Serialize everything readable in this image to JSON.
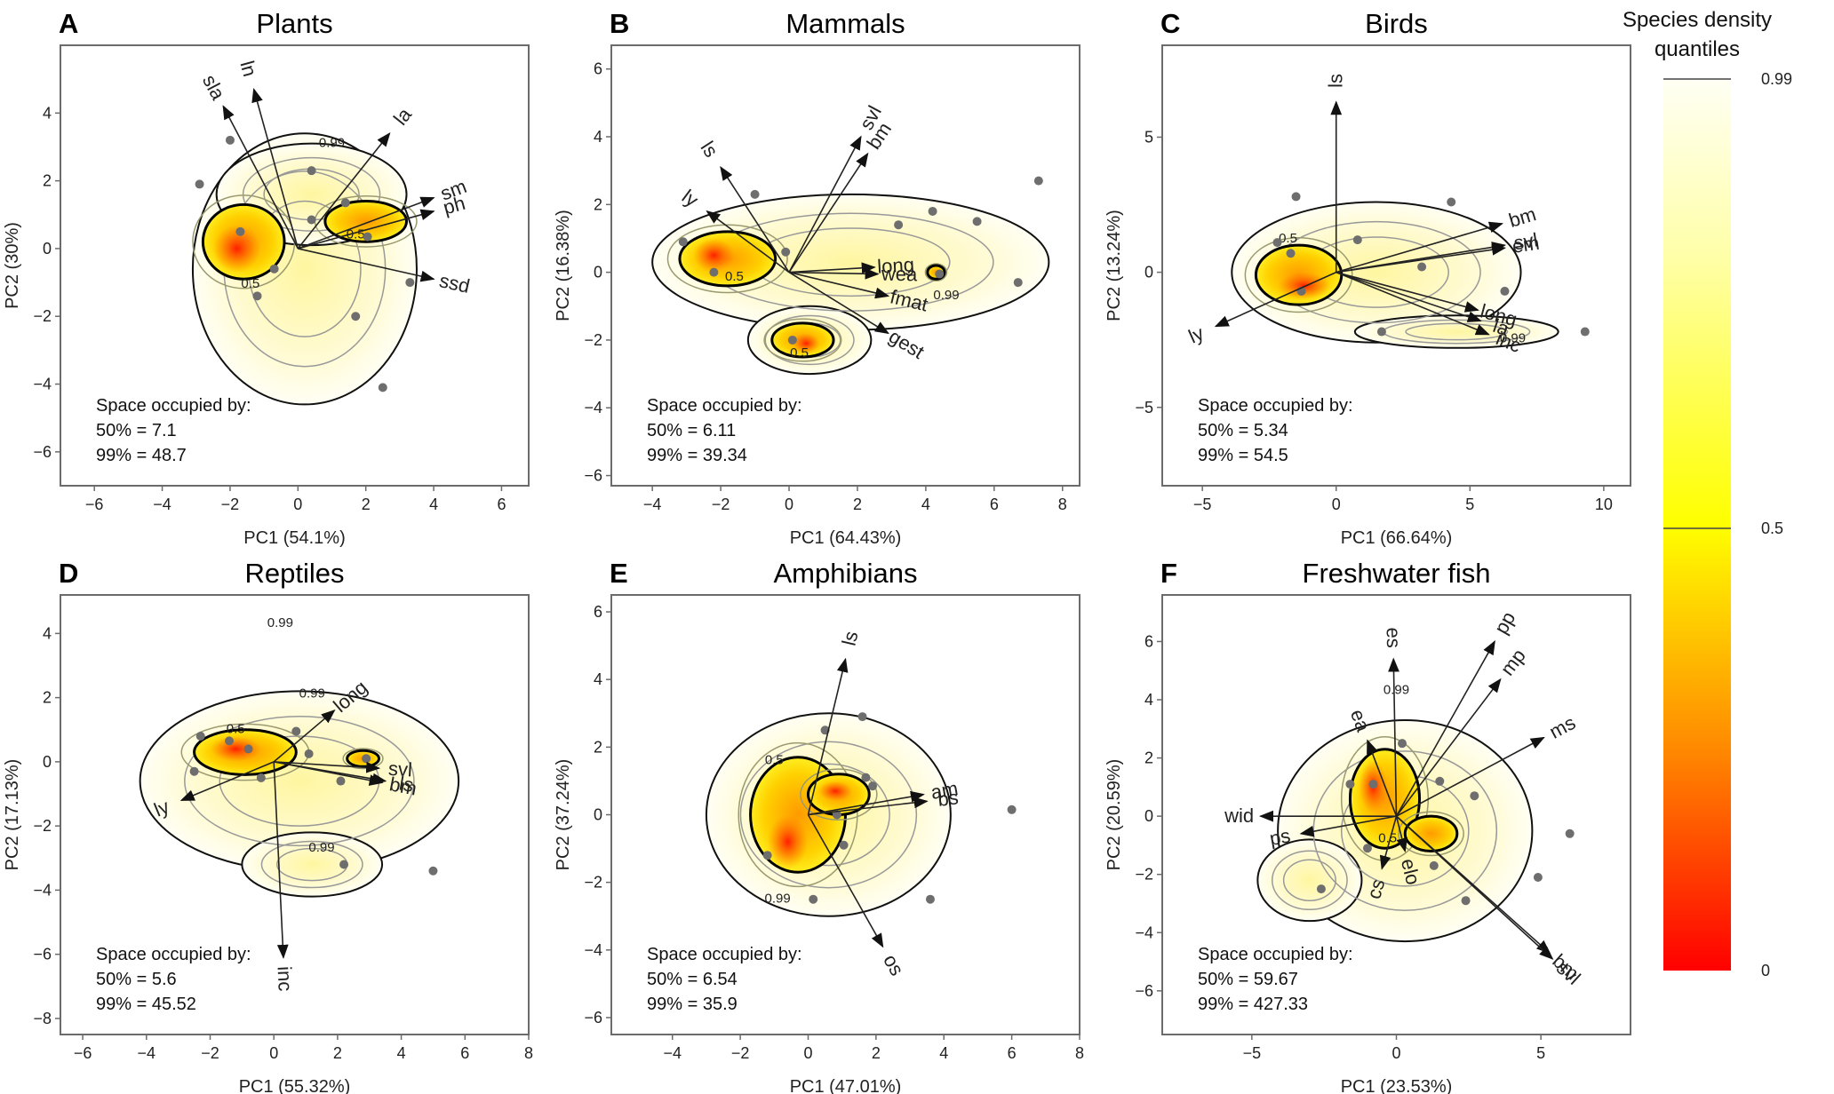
{
  "colorbar": {
    "title_line1": "Species density",
    "title_line2": "quantiles",
    "ticks": [
      {
        "value": 0.99,
        "label": "0.99"
      },
      {
        "value": 0.5,
        "label": "0.5"
      },
      {
        "value": 0,
        "label": "0"
      }
    ],
    "colors": {
      "high": "#fffef8",
      "mid": "#ffff00",
      "low": "#ff0000"
    }
  },
  "chart_data": [
    {
      "type": "scatter",
      "letter": "A",
      "title": "Plants",
      "xlabel": "PC1 (54.1%)",
      "ylabel": "PC2 (30%)",
      "xlim": [
        -7.0,
        6.8
      ],
      "ylim": [
        -7.0,
        6.0
      ],
      "xticks": [
        -6,
        -4,
        -2,
        0,
        2,
        4,
        6
      ],
      "yticks": [
        -6,
        -4,
        -2,
        0,
        2,
        4
      ],
      "space_occupied": {
        "heading": "Space occupied by:",
        "p50": "50% = 7.1",
        "p99": "99% = 48.7"
      },
      "contour_labels": [
        {
          "text": "0.99",
          "x": 1.0,
          "y": 3.0
        },
        {
          "text": "0.5",
          "x": -1.4,
          "y": -1.15
        },
        {
          "text": "0.5",
          "x": 1.7,
          "y": 0.3
        }
      ],
      "density_99": [
        {
          "cx": 0.2,
          "cy": -0.6,
          "rx": 3.3,
          "ry": 4.0
        },
        {
          "cx": 0.4,
          "cy": 1.6,
          "rx": 2.8,
          "ry": 1.5
        }
      ],
      "density_50": [
        {
          "cx": -1.6,
          "cy": 0.2,
          "rx": 1.2,
          "ry": 1.1
        },
        {
          "cx": 2.0,
          "cy": 0.8,
          "rx": 1.2,
          "ry": 0.6
        }
      ],
      "density_core": [
        {
          "cx": -1.8,
          "cy": 0.0,
          "rx": 0.7,
          "ry": 0.7
        }
      ],
      "arrows": [
        {
          "label": "sla",
          "x": -2.2,
          "y": 4.2
        },
        {
          "label": "ln",
          "x": -1.3,
          "y": 4.7
        },
        {
          "label": "la",
          "x": 2.7,
          "y": 3.4
        },
        {
          "label": "sm",
          "x": 4.0,
          "y": 1.5
        },
        {
          "label": "ph",
          "x": 4.0,
          "y": 1.1
        },
        {
          "label": "ssd",
          "x": 4.0,
          "y": -0.9
        }
      ],
      "points": [
        [
          -2.0,
          3.2
        ],
        [
          -2.9,
          1.9
        ],
        [
          -1.7,
          0.5
        ],
        [
          -0.7,
          -0.6
        ],
        [
          -1.2,
          -1.4
        ],
        [
          0.4,
          2.3
        ],
        [
          0.4,
          0.85
        ],
        [
          1.4,
          1.35
        ],
        [
          2.05,
          0.35
        ],
        [
          3.3,
          -1.0
        ],
        [
          1.7,
          -2.0
        ],
        [
          2.5,
          -4.1
        ]
      ]
    },
    {
      "type": "scatter",
      "letter": "B",
      "title": "Mammals",
      "xlabel": "PC1 (64.43%)",
      "ylabel": "PC2 (16.38%)",
      "xlim": [
        -5.2,
        8.5
      ],
      "ylim": [
        -6.3,
        6.7
      ],
      "xticks": [
        -4,
        -2,
        0,
        2,
        4,
        6,
        8
      ],
      "yticks": [
        -6,
        -4,
        -2,
        0,
        2,
        4,
        6
      ],
      "space_occupied": {
        "heading": "Space occupied by:",
        "p50": "50% = 6.11",
        "p99": "99% = 39.34"
      },
      "contour_labels": [
        {
          "text": "0.5",
          "x": -1.6,
          "y": -0.25
        },
        {
          "text": "0.5",
          "x": 0.3,
          "y": -2.5
        },
        {
          "text": "0.99",
          "x": 4.6,
          "y": -0.8
        }
      ],
      "density_99": [
        {
          "cx": 1.8,
          "cy": 0.3,
          "rx": 5.8,
          "ry": 2.0
        },
        {
          "cx": 0.6,
          "cy": -2.0,
          "rx": 1.8,
          "ry": 1.0
        }
      ],
      "density_50": [
        {
          "cx": -1.8,
          "cy": 0.4,
          "rx": 1.4,
          "ry": 0.8
        },
        {
          "cx": 0.4,
          "cy": -2.0,
          "rx": 0.9,
          "ry": 0.5
        },
        {
          "cx": 4.3,
          "cy": 0.0,
          "rx": 0.25,
          "ry": 0.2
        }
      ],
      "density_core": [
        {
          "cx": -2.2,
          "cy": 0.5,
          "rx": 0.6,
          "ry": 0.5
        },
        {
          "cx": 0.5,
          "cy": -2.1,
          "rx": 0.4,
          "ry": 0.3
        }
      ],
      "arrows": [
        {
          "label": "ls",
          "x": -2.0,
          "y": 3.1
        },
        {
          "label": "ly",
          "x": -2.4,
          "y": 1.8
        },
        {
          "label": "svl",
          "x": 2.1,
          "y": 4.0
        },
        {
          "label": "bm",
          "x": 2.3,
          "y": 3.5
        },
        {
          "label": "long",
          "x": 2.5,
          "y": 0.15
        },
        {
          "label": "wea",
          "x": 2.6,
          "y": -0.05
        },
        {
          "label": "fmat",
          "x": 2.9,
          "y": -0.7
        },
        {
          "label": "gest",
          "x": 2.9,
          "y": -1.8
        }
      ],
      "points": [
        [
          -1.0,
          2.3
        ],
        [
          -3.1,
          0.9
        ],
        [
          -2.2,
          0.0
        ],
        [
          -0.1,
          0.6
        ],
        [
          0.1,
          -2.0
        ],
        [
          3.2,
          1.4
        ],
        [
          4.2,
          1.8
        ],
        [
          5.5,
          1.5
        ],
        [
          7.3,
          2.7
        ],
        [
          4.4,
          -0.05
        ],
        [
          6.7,
          -0.3
        ]
      ]
    },
    {
      "type": "scatter",
      "letter": "C",
      "title": "Birds",
      "xlabel": "PC1 (66.64%)",
      "ylabel": "PC2 (13.24%)",
      "xlim": [
        -6.5,
        11.0
      ],
      "ylim": [
        -7.9,
        8.4
      ],
      "xticks": [
        -5,
        0,
        5,
        10
      ],
      "yticks": [
        -5,
        0,
        5
      ],
      "space_occupied": {
        "heading": "Space occupied by:",
        "p50": "50% = 5.34",
        "p99": "99% = 54.5"
      },
      "contour_labels": [
        {
          "text": "0.5",
          "x": -1.8,
          "y": 1.1
        },
        {
          "text": "0.99",
          "x": 6.6,
          "y": -2.6
        }
      ],
      "density_99": [
        {
          "cx": 1.5,
          "cy": 0.0,
          "rx": 5.4,
          "ry": 2.6
        },
        {
          "cx": 4.5,
          "cy": -2.2,
          "rx": 3.8,
          "ry": 0.6
        }
      ],
      "density_50": [
        {
          "cx": -1.4,
          "cy": -0.1,
          "rx": 1.6,
          "ry": 1.1
        }
      ],
      "density_core": [
        {
          "cx": -1.2,
          "cy": -0.5,
          "rx": 1.0,
          "ry": 0.5
        }
      ],
      "arrows": [
        {
          "label": "ls",
          "x": 0.0,
          "y": 6.3
        },
        {
          "label": "bm",
          "x": 6.2,
          "y": 1.8
        },
        {
          "label": "svl",
          "x": 6.3,
          "y": 1.0
        },
        {
          "label": "em",
          "x": 6.3,
          "y": 0.9
        },
        {
          "label": "long",
          "x": 5.3,
          "y": -1.4
        },
        {
          "label": "la",
          "x": 5.4,
          "y": -1.8
        },
        {
          "label": "inc",
          "x": 5.7,
          "y": -2.3
        },
        {
          "label": "ly",
          "x": -4.5,
          "y": -2.0
        }
      ],
      "points": [
        [
          -1.5,
          2.8
        ],
        [
          -2.2,
          1.1
        ],
        [
          -1.7,
          0.7
        ],
        [
          -1.3,
          -0.7
        ],
        [
          0.8,
          1.2
        ],
        [
          3.2,
          0.2
        ],
        [
          4.3,
          2.6
        ],
        [
          6.3,
          -0.7
        ],
        [
          1.7,
          -2.2
        ],
        [
          9.3,
          -2.2
        ]
      ]
    },
    {
      "type": "scatter",
      "letter": "D",
      "title": "Reptiles",
      "xlabel": "PC1 (55.32%)",
      "ylabel": "PC2 (17.13%)",
      "xlim": [
        -6.7,
        8.0
      ],
      "ylim": [
        -8.5,
        5.2
      ],
      "xticks": [
        -6,
        -4,
        -2,
        0,
        2,
        4,
        6,
        8
      ],
      "yticks": [
        -8,
        -6,
        -4,
        -2,
        0,
        2,
        4
      ],
      "space_occupied": {
        "heading": "Space occupied by:",
        "p50": "50% = 5.6",
        "p99": "99% = 45.52"
      },
      "contour_labels": [
        {
          "text": "0.99",
          "x": 0.2,
          "y": 4.2
        },
        {
          "text": "0.99",
          "x": 1.2,
          "y": 2.0
        },
        {
          "text": "0.5",
          "x": -1.2,
          "y": 0.9
        },
        {
          "text": "0.99",
          "x": 1.5,
          "y": -2.8
        }
      ],
      "density_99": [
        {
          "cx": 0.8,
          "cy": -0.6,
          "rx": 5.0,
          "ry": 2.8
        },
        {
          "cx": 1.2,
          "cy": -3.2,
          "rx": 2.2,
          "ry": 1.0
        }
      ],
      "density_50": [
        {
          "cx": -0.9,
          "cy": 0.3,
          "rx": 1.6,
          "ry": 0.7
        },
        {
          "cx": 2.8,
          "cy": 0.1,
          "rx": 0.5,
          "ry": 0.25
        }
      ],
      "density_core": [
        {
          "cx": -1.2,
          "cy": 0.4,
          "rx": 0.8,
          "ry": 0.4
        }
      ],
      "arrows": [
        {
          "label": "long",
          "x": 1.9,
          "y": 1.6
        },
        {
          "label": "svl",
          "x": 3.3,
          "y": -0.2
        },
        {
          "label": "ls",
          "x": 3.5,
          "y": -0.6
        },
        {
          "label": "bm",
          "x": 3.4,
          "y": -0.65
        },
        {
          "label": "ly",
          "x": -2.9,
          "y": -1.2
        },
        {
          "label": "inc",
          "x": 0.3,
          "y": -6.1
        }
      ],
      "points": [
        [
          -2.3,
          0.8
        ],
        [
          -1.4,
          0.65
        ],
        [
          -0.8,
          0.4
        ],
        [
          -2.5,
          -0.3
        ],
        [
          -0.4,
          -0.5
        ],
        [
          0.7,
          0.95
        ],
        [
          1.1,
          0.25
        ],
        [
          2.9,
          0.1
        ],
        [
          2.1,
          -0.6
        ],
        [
          2.2,
          -3.2
        ],
        [
          5.0,
          -3.4
        ]
      ]
    },
    {
      "type": "scatter",
      "letter": "E",
      "title": "Amphibians",
      "xlabel": "PC1 (47.01%)",
      "ylabel": "PC2 (37.24%)",
      "xlim": [
        -5.8,
        8.0
      ],
      "ylim": [
        -6.5,
        6.5
      ],
      "xticks": [
        -4,
        -2,
        0,
        2,
        4,
        6,
        8
      ],
      "yticks": [
        -6,
        -4,
        -2,
        0,
        2,
        4,
        6
      ],
      "space_occupied": {
        "heading": "Space occupied by:",
        "p50": "50% = 6.54",
        "p99": "99% = 35.9"
      },
      "contour_labels": [
        {
          "text": "0.5",
          "x": -1.0,
          "y": 1.5
        },
        {
          "text": "0.99",
          "x": -0.9,
          "y": -2.6
        }
      ],
      "density_99": [
        {
          "cx": 0.6,
          "cy": 0.0,
          "rx": 3.6,
          "ry": 3.0
        }
      ],
      "density_50": [
        {
          "cx": -0.3,
          "cy": 0.0,
          "rx": 1.4,
          "ry": 1.7
        },
        {
          "cx": 0.9,
          "cy": 0.6,
          "rx": 0.9,
          "ry": 0.6
        }
      ],
      "density_core": [
        {
          "cx": -0.6,
          "cy": -0.8,
          "rx": 0.6,
          "ry": 0.8
        },
        {
          "cx": 0.8,
          "cy": 0.7,
          "rx": 0.5,
          "ry": 0.3
        }
      ],
      "arrows": [
        {
          "label": "ls",
          "x": 1.1,
          "y": 4.6
        },
        {
          "label": "am",
          "x": 3.4,
          "y": 0.6
        },
        {
          "label": "bs",
          "x": 3.5,
          "y": 0.4
        },
        {
          "label": "os",
          "x": 2.2,
          "y": -3.9
        }
      ],
      "points": [
        [
          0.5,
          2.5
        ],
        [
          1.6,
          2.9
        ],
        [
          1.7,
          1.1
        ],
        [
          1.9,
          0.85
        ],
        [
          0.85,
          0.0
        ],
        [
          1.05,
          -0.9
        ],
        [
          -1.2,
          -1.2
        ],
        [
          0.15,
          -2.5
        ],
        [
          3.6,
          -2.5
        ],
        [
          6.0,
          0.15
        ]
      ]
    },
    {
      "type": "scatter",
      "letter": "F",
      "title": "Freshwater fish",
      "xlabel": "PC1 (23.53%)",
      "ylabel": "PC2 (20.59%)",
      "xlim": [
        -8.1,
        8.1
      ],
      "ylim": [
        -7.5,
        7.6
      ],
      "xticks": [
        -5,
        0,
        5
      ],
      "yticks": [
        -6,
        -4,
        -2,
        0,
        2,
        4,
        6
      ],
      "space_occupied": {
        "heading": "Space occupied by:",
        "p50": "50% = 59.67",
        "p99": "99% = 427.33"
      },
      "contour_labels": [
        {
          "text": "0.99",
          "x": 0.0,
          "y": 4.2
        },
        {
          "text": "0.5",
          "x": -0.3,
          "y": -0.9
        }
      ],
      "density_99": [
        {
          "cx": 0.3,
          "cy": -0.5,
          "rx": 4.4,
          "ry": 3.8
        },
        {
          "cx": -3.0,
          "cy": -2.2,
          "rx": 1.8,
          "ry": 1.4
        }
      ],
      "density_50": [
        {
          "cx": -0.4,
          "cy": 0.6,
          "rx": 1.2,
          "ry": 1.7
        },
        {
          "cx": 1.2,
          "cy": -0.6,
          "rx": 0.9,
          "ry": 0.6
        }
      ],
      "density_core": [
        {
          "cx": -0.8,
          "cy": 1.0,
          "rx": 0.5,
          "ry": 0.9
        }
      ],
      "arrows": [
        {
          "label": "es",
          "x": -0.1,
          "y": 5.4
        },
        {
          "label": "pp",
          "x": 3.4,
          "y": 6.0
        },
        {
          "label": "mp",
          "x": 3.6,
          "y": 4.7
        },
        {
          "label": "ms",
          "x": 5.1,
          "y": 2.7
        },
        {
          "label": "wid",
          "x": -4.7,
          "y": 0.0
        },
        {
          "label": "ps",
          "x": -3.3,
          "y": -0.6
        },
        {
          "label": "ea",
          "x": -1.0,
          "y": 2.6
        },
        {
          "label": "cs",
          "x": -0.5,
          "y": -1.8
        },
        {
          "label": "elo",
          "x": 0.3,
          "y": -1.2
        },
        {
          "label": "bm",
          "x": 5.3,
          "y": -4.7
        },
        {
          "label": "svl",
          "x": 5.4,
          "y": -4.9
        }
      ],
      "points": [
        [
          -1.6,
          1.1
        ],
        [
          -0.8,
          1.1
        ],
        [
          0.2,
          2.5
        ],
        [
          1.5,
          1.2
        ],
        [
          2.7,
          0.7
        ],
        [
          6.0,
          -0.6
        ],
        [
          -1.0,
          -1.1
        ],
        [
          1.3,
          -1.7
        ],
        [
          -2.6,
          -2.5
        ],
        [
          2.4,
          -2.9
        ],
        [
          4.9,
          -2.1
        ]
      ]
    }
  ]
}
